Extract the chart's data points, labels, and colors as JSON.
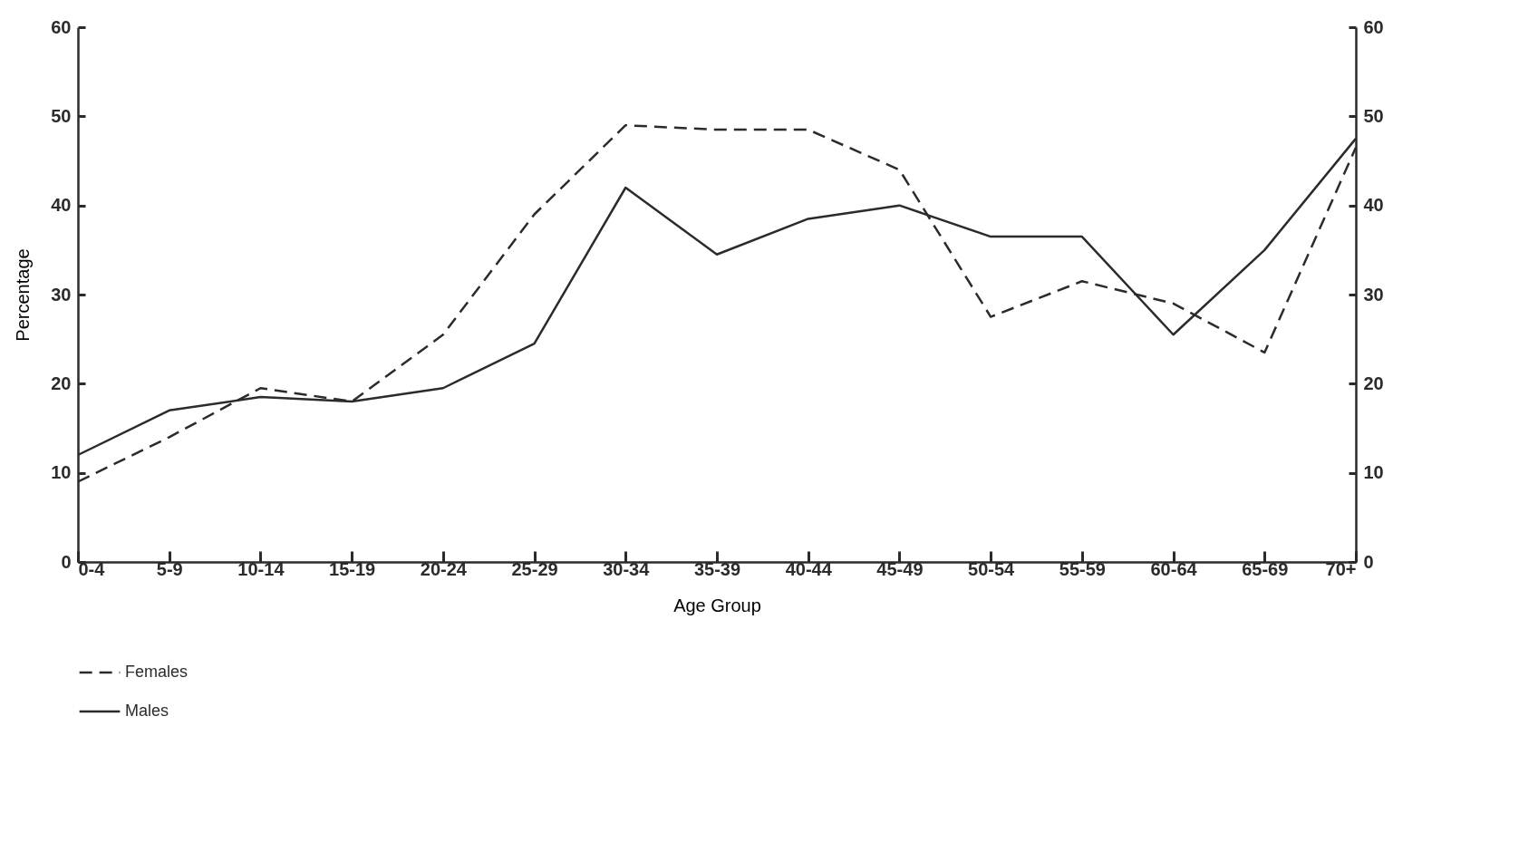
{
  "chart_data": {
    "type": "line",
    "xlabel": "Age Group",
    "ylabel": "Percentage",
    "categories": [
      "0-4",
      "5-9",
      "10-14",
      "15-19",
      "20-24",
      "25-29",
      "30-34",
      "35-39",
      "40-44",
      "45-49",
      "50-54",
      "55-59",
      "60-64",
      "65-69",
      "70+"
    ],
    "series": [
      {
        "name": "Females",
        "color": "#2b2b2b",
        "line_style": "dashed",
        "values": [
          9,
          14,
          19.5,
          18,
          25.5,
          39,
          49,
          48.5,
          48.5,
          44,
          27.5,
          31.5,
          29,
          23.5,
          46.5
        ]
      },
      {
        "name": "Males",
        "color": "#2b2b2b",
        "line_style": "solid",
        "values": [
          12,
          17,
          18.5,
          18,
          19.5,
          24.5,
          42,
          34.5,
          38.5,
          40,
          36.5,
          36.5,
          25.5,
          35,
          47.5
        ]
      }
    ],
    "ylim": [
      0,
      60
    ],
    "yticks": [
      0,
      10,
      20,
      30,
      40,
      50,
      60
    ],
    "y2lim": [
      0,
      60
    ],
    "y2ticks": [
      0,
      10,
      20,
      30,
      40,
      50,
      60
    ],
    "grid": false,
    "legend": "bottom left",
    "marker": "none"
  }
}
